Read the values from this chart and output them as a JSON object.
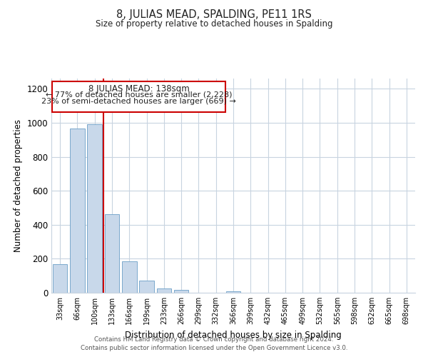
{
  "title": "8, JULIAS MEAD, SPALDING, PE11 1RS",
  "subtitle": "Size of property relative to detached houses in Spalding",
  "xlabel": "Distribution of detached houses by size in Spalding",
  "ylabel": "Number of detached properties",
  "bar_labels": [
    "33sqm",
    "66sqm",
    "100sqm",
    "133sqm",
    "166sqm",
    "199sqm",
    "233sqm",
    "266sqm",
    "299sqm",
    "332sqm",
    "366sqm",
    "399sqm",
    "432sqm",
    "465sqm",
    "499sqm",
    "532sqm",
    "565sqm",
    "598sqm",
    "632sqm",
    "665sqm",
    "698sqm"
  ],
  "bar_values": [
    170,
    965,
    990,
    460,
    185,
    70,
    25,
    15,
    0,
    0,
    10,
    0,
    0,
    0,
    0,
    0,
    0,
    0,
    0,
    0,
    0
  ],
  "bar_color": "#c8d8ea",
  "bar_edge_color": "#7aa8cc",
  "reference_line_color": "#cc0000",
  "ylim": [
    0,
    1260
  ],
  "yticks": [
    0,
    200,
    400,
    600,
    800,
    1000,
    1200
  ],
  "annotation_title": "8 JULIAS MEAD: 138sqm",
  "annotation_line1": "← 77% of detached houses are smaller (2,228)",
  "annotation_line2": "23% of semi-detached houses are larger (669) →",
  "annotation_box_color": "#ffffff",
  "annotation_box_edge": "#cc0000",
  "footer_line1": "Contains HM Land Registry data © Crown copyright and database right 2024.",
  "footer_line2": "Contains public sector information licensed under the Open Government Licence v3.0.",
  "background_color": "#ffffff",
  "grid_color": "#c8d4e0"
}
